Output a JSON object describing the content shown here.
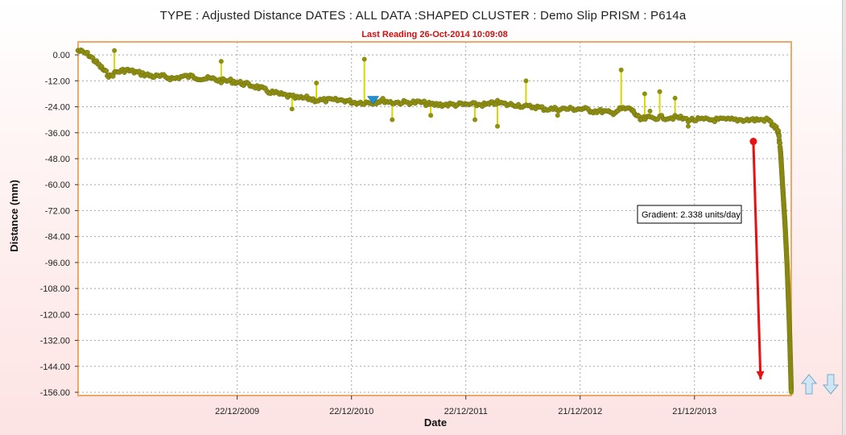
{
  "header": {
    "title": "TYPE : Adjusted Distance   DATES : ALL   DATA :SHAPED   CLUSTER : Demo Slip   PRISM : P614a",
    "subtitle": "Last Reading 26-Oct-2014 10:09:08"
  },
  "chart_data": {
    "type": "line",
    "xlabel": "Date",
    "ylabel": "Distance (mm)",
    "x_range": [
      "2008-08-01",
      "2014-10-26"
    ],
    "ylim": [
      -157.5,
      6
    ],
    "x_tick_labels": [
      "22/12/2009",
      "22/12/2010",
      "22/12/2011",
      "21/12/2012",
      "21/12/2013"
    ],
    "x_ticks": [
      "2009-12-22",
      "2010-12-22",
      "2011-12-22",
      "2012-12-21",
      "2013-12-21"
    ],
    "y_tick_labels": [
      "0.00",
      "-12.00",
      "-24.00",
      "-36.00",
      "-48.00",
      "-60.00",
      "-72.00",
      "-84.00",
      "-96.00",
      "-108.00",
      "-120.00",
      "-132.00",
      "-144.00",
      "-156.00"
    ],
    "y_ticks": [
      0,
      -12,
      -24,
      -36,
      -48,
      -60,
      -72,
      -84,
      -96,
      -108,
      -120,
      -132,
      -144,
      -156
    ],
    "grid": true,
    "series": [
      {
        "color": "#d8d800",
        "marker_color": "#8f8f12",
        "x": [
          "2008-08-01",
          "2008-08-20",
          "2008-09-05",
          "2008-09-25",
          "2008-10-15",
          "2008-11-10",
          "2008-12-01",
          "2009-01-01",
          "2009-02-01",
          "2009-03-01",
          "2009-04-01",
          "2009-05-01",
          "2009-06-01",
          "2009-07-01",
          "2009-08-01",
          "2009-09-01",
          "2009-10-01",
          "2009-11-01",
          "2009-12-01",
          "2010-01-01",
          "2010-02-01",
          "2010-03-01",
          "2010-04-01",
          "2010-05-01",
          "2010-06-01",
          "2010-07-01",
          "2010-08-01",
          "2010-09-01",
          "2010-10-01",
          "2010-11-01",
          "2010-12-01",
          "2011-01-01",
          "2011-02-01",
          "2011-03-01",
          "2011-04-01",
          "2011-05-01",
          "2011-06-01",
          "2011-07-01",
          "2011-08-01",
          "2011-09-01",
          "2011-10-01",
          "2011-11-01",
          "2011-12-01",
          "2012-01-01",
          "2012-02-01",
          "2012-03-01",
          "2012-04-01",
          "2012-05-01",
          "2012-06-01",
          "2012-07-01",
          "2012-08-01",
          "2012-09-01",
          "2012-10-01",
          "2012-11-01",
          "2012-12-01",
          "2013-01-01",
          "2013-02-01",
          "2013-03-01",
          "2013-04-01",
          "2013-05-01",
          "2013-06-01",
          "2013-07-01",
          "2013-08-01",
          "2013-09-01",
          "2013-10-01",
          "2013-11-01",
          "2013-12-01",
          "2014-01-01",
          "2014-02-01",
          "2014-03-01",
          "2014-04-01",
          "2014-05-01",
          "2014-06-01",
          "2014-07-01",
          "2014-08-01",
          "2014-08-15",
          "2014-08-25",
          "2014-09-01",
          "2014-09-08",
          "2014-09-15",
          "2014-09-22",
          "2014-09-29",
          "2014-10-06",
          "2014-10-13",
          "2014-10-20",
          "2014-10-26"
        ],
        "y": [
          2,
          1,
          0,
          -3,
          -6,
          -10,
          -8,
          -7,
          -8,
          -9,
          -10,
          -10,
          -11,
          -10,
          -10,
          -11,
          -11,
          -12,
          -12,
          -13,
          -14,
          -15,
          -17,
          -18,
          -19,
          -20,
          -20,
          -21,
          -21,
          -21,
          -21,
          -22,
          -22,
          -22,
          -21,
          -22,
          -22,
          -22,
          -22,
          -23,
          -23,
          -23,
          -23,
          -23,
          -23,
          -23,
          -22,
          -23,
          -23,
          -24,
          -24,
          -25,
          -25,
          -25,
          -25,
          -25,
          -26,
          -26,
          -27,
          -25,
          -25,
          -30,
          -29,
          -29,
          -29,
          -29,
          -30,
          -30,
          -30,
          -30,
          -30,
          -30,
          -30,
          -30,
          -30,
          -30,
          -32,
          -33,
          -34,
          -36,
          -45,
          -62,
          -78,
          -98,
          -125,
          -156
        ]
      }
    ],
    "spikes": [
      {
        "x": "2008-11-25",
        "y": 2
      },
      {
        "x": "2009-11-01",
        "y": -3
      },
      {
        "x": "2010-06-15",
        "y": -25
      },
      {
        "x": "2010-09-01",
        "y": -13
      },
      {
        "x": "2011-02-01",
        "y": -2
      },
      {
        "x": "2011-05-01",
        "y": -30
      },
      {
        "x": "2011-09-01",
        "y": -28
      },
      {
        "x": "2012-01-20",
        "y": -30
      },
      {
        "x": "2012-04-01",
        "y": -33
      },
      {
        "x": "2012-07-01",
        "y": -12
      },
      {
        "x": "2012-10-10",
        "y": -28
      },
      {
        "x": "2013-05-01",
        "y": -7
      },
      {
        "x": "2013-07-15",
        "y": -18
      },
      {
        "x": "2013-08-01",
        "y": -26
      },
      {
        "x": "2013-09-01",
        "y": -17
      },
      {
        "x": "2013-10-20",
        "y": -20
      },
      {
        "x": "2013-12-01",
        "y": -33
      }
    ],
    "event_marker": {
      "x": "2011-03-01",
      "y": -21
    },
    "trend_line": {
      "x_start": "2014-06-27",
      "y_start": -40,
      "x_end": "2014-07-20",
      "y_end": -150,
      "color": "#e81010"
    },
    "annotation": "Gradient: 2.338 units/day"
  },
  "icons": {
    "up": "arrow-up-icon",
    "down": "arrow-down-icon"
  }
}
